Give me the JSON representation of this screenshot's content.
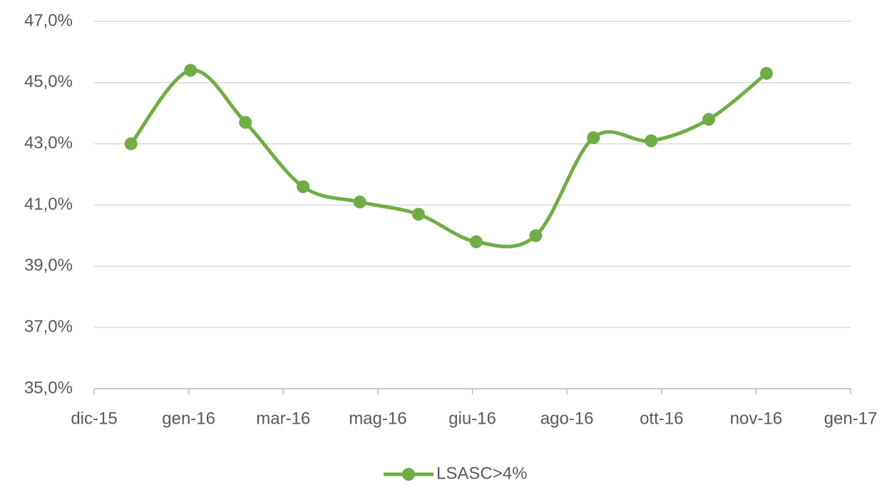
{
  "chart_data": {
    "type": "line",
    "x": [
      0.39,
      1.02,
      1.6,
      2.21,
      2.81,
      3.43,
      4.04,
      4.67,
      5.28,
      5.89,
      6.5,
      7.11
    ],
    "xlim": [
      0,
      8
    ],
    "xticks": [
      {
        "value": 0,
        "label": "dic-15"
      },
      {
        "value": 1,
        "label": "gen-16"
      },
      {
        "value": 2,
        "label": "mar-16"
      },
      {
        "value": 3,
        "label": "mag-16"
      },
      {
        "value": 4,
        "label": "giu-16"
      },
      {
        "value": 5,
        "label": "ago-16"
      },
      {
        "value": 6,
        "label": "ott-16"
      },
      {
        "value": 7,
        "label": "nov-16"
      },
      {
        "value": 8,
        "label": "gen-17"
      }
    ],
    "series": [
      {
        "name": "LSASC>4%",
        "color": "#70ad47",
        "values": [
          43.0,
          45.4,
          43.7,
          41.6,
          41.1,
          40.7,
          39.8,
          40.0,
          43.2,
          43.1,
          43.8,
          45.3
        ]
      }
    ],
    "ylim": [
      35,
      47
    ],
    "yticks": [
      {
        "value": 35,
        "label": "35,0%"
      },
      {
        "value": 37,
        "label": "37,0%"
      },
      {
        "value": 39,
        "label": "39,0%"
      },
      {
        "value": 41,
        "label": "41,0%"
      },
      {
        "value": 43,
        "label": "43,0%"
      },
      {
        "value": 45,
        "label": "45,0%"
      },
      {
        "value": 47,
        "label": "47,0%"
      }
    ],
    "grid": true,
    "smooth": true,
    "legend": "bottom"
  }
}
